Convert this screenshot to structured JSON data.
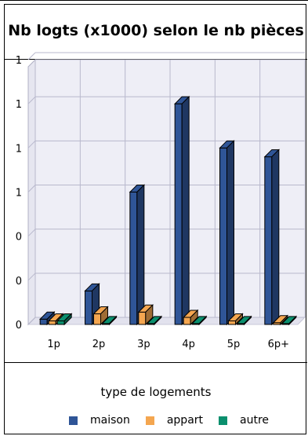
{
  "chart_data": {
    "type": "bar",
    "title": "Nb logts (x1000) selon le nb pièces",
    "xlabel": "type de logements",
    "ylabel": "",
    "categories": [
      "1p",
      "2p",
      "3p",
      "4p",
      "5p",
      "6p+"
    ],
    "ytick_labels": [
      "0",
      "0",
      "0",
      "1",
      "1",
      "1",
      "1"
    ],
    "ylim": [
      0,
      1.5
    ],
    "grid": true,
    "legend_position": "bottom",
    "series": [
      {
        "name": "maison",
        "color": "#2f5597",
        "values": [
          0.03,
          0.19,
          0.75,
          1.25,
          1.0,
          0.95
        ]
      },
      {
        "name": "appart",
        "color": "#f4a650",
        "values": [
          0.02,
          0.06,
          0.07,
          0.04,
          0.02,
          0.01
        ]
      },
      {
        "name": "autre",
        "color": "#0a8f6e",
        "values": [
          0.02,
          0.005,
          0.005,
          0.005,
          0.005,
          0.005
        ]
      }
    ]
  }
}
